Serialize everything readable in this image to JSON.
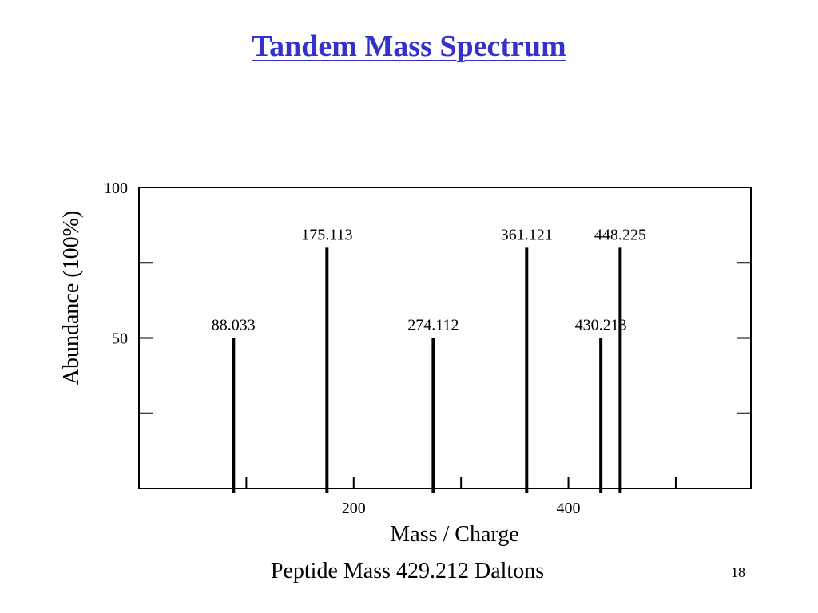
{
  "slide": {
    "title": "Tandem Mass Spectrum",
    "caption": "Peptide Mass 429.212 Daltons",
    "page_number": "18",
    "title_color": "#3333cc"
  },
  "chart_data": {
    "type": "bar",
    "title": "",
    "xlabel": "Mass / Charge",
    "ylabel": "Abundance (100%)",
    "xlim": [
      0,
      570
    ],
    "ylim": [
      0,
      100
    ],
    "x_ticks": [
      100,
      200,
      300,
      400,
      500
    ],
    "x_tick_labels": [
      "",
      "200",
      "",
      "400",
      ""
    ],
    "y_ticks": [
      25,
      50,
      75,
      100
    ],
    "y_tick_labels": [
      "",
      "50",
      "",
      "100"
    ],
    "grid": false,
    "legend": false,
    "peaks": [
      {
        "mz": 88.033,
        "abundance": 50,
        "label": "88.033"
      },
      {
        "mz": 175.113,
        "abundance": 80,
        "label": "175.113"
      },
      {
        "mz": 274.112,
        "abundance": 50,
        "label": "274.112"
      },
      {
        "mz": 361.121,
        "abundance": 80,
        "label": "361.121"
      },
      {
        "mz": 430.213,
        "abundance": 50,
        "label": "430.213"
      },
      {
        "mz": 448.225,
        "abundance": 80,
        "label": "448.225"
      }
    ]
  }
}
